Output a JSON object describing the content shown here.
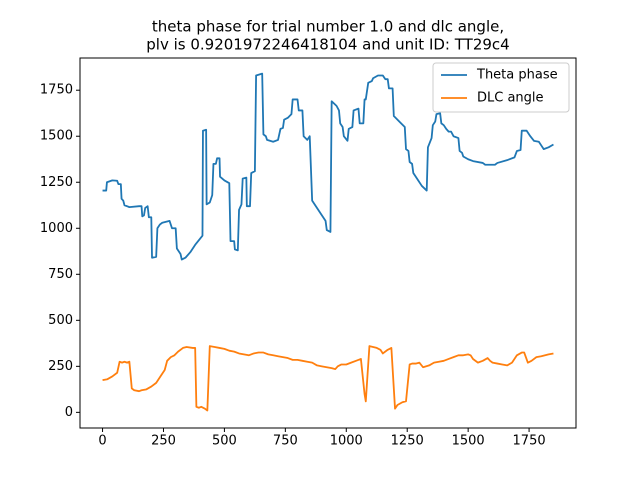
{
  "chart_data": {
    "type": "line",
    "title": [
      "theta phase for trial number 1.0 and dlc angle,",
      "plv is 0.9201972246418104 and unit ID: TT29c4"
    ],
    "xlim": [
      -92.5,
      1942.5
    ],
    "ylim": [
      -85,
      1925
    ],
    "xticks": [
      0,
      250,
      500,
      750,
      1000,
      1250,
      1500,
      1750
    ],
    "yticks": [
      0,
      250,
      500,
      750,
      1000,
      1250,
      1500,
      1750
    ],
    "legend": "upper right",
    "series": [
      {
        "name": "Theta phase",
        "color": "#1f77b4",
        "x": [
          0,
          15,
          18,
          40,
          60,
          65,
          75,
          78,
          85,
          90,
          110,
          150,
          160,
          163,
          170,
          175,
          185,
          190,
          200,
          203,
          220,
          225,
          235,
          245,
          275,
          285,
          300,
          305,
          320,
          325,
          340,
          360,
          380,
          410,
          412,
          425,
          427,
          440,
          450,
          455,
          465,
          470,
          480,
          482,
          500,
          520,
          525,
          540,
          543,
          555,
          560,
          570,
          575,
          590,
          592,
          605,
          610,
          625,
          630,
          655,
          660,
          670,
          675,
          700,
          720,
          730,
          740,
          745,
          760,
          775,
          780,
          800,
          805,
          820,
          825,
          840,
          850,
          860,
          880,
          900,
          915,
          920,
          935,
          940,
          960,
          970,
          975,
          985,
          990,
          1005,
          1010,
          1025,
          1030,
          1050,
          1055,
          1070,
          1075,
          1080,
          1090,
          1105,
          1110,
          1130,
          1150,
          1160,
          1170,
          1175,
          1190,
          1195,
          1225,
          1240,
          1245,
          1255,
          1260,
          1270,
          1275,
          1295,
          1310,
          1330,
          1335,
          1350,
          1355,
          1365,
          1370,
          1385,
          1390,
          1400,
          1410,
          1420,
          1430,
          1440,
          1460,
          1465,
          1475,
          1480,
          1500,
          1520,
          1560,
          1570,
          1610,
          1620,
          1660,
          1690,
          1700,
          1715,
          1720,
          1740,
          1755,
          1770,
          1790,
          1800,
          1810,
          1830,
          1850
        ],
        "values": [
          1205,
          1205,
          1250,
          1260,
          1258,
          1240,
          1240,
          1160,
          1150,
          1125,
          1115,
          1120,
          1120,
          1065,
          1070,
          1110,
          1120,
          1060,
          1060,
          840,
          845,
          1000,
          1020,
          1030,
          1040,
          1000,
          1000,
          890,
          860,
          830,
          840,
          870,
          910,
          960,
          1530,
          1535,
          1130,
          1140,
          1180,
          1350,
          1350,
          1380,
          1380,
          1280,
          1260,
          1245,
          930,
          930,
          885,
          880,
          1100,
          1130,
          1270,
          1275,
          1120,
          1120,
          1300,
          1310,
          1830,
          1840,
          1510,
          1500,
          1480,
          1470,
          1480,
          1540,
          1545,
          1590,
          1600,
          1620,
          1700,
          1700,
          1640,
          1640,
          1500,
          1480,
          1500,
          1150,
          1110,
          1070,
          1040,
          990,
          980,
          1690,
          1665,
          1640,
          1570,
          1550,
          1500,
          1475,
          1540,
          1550,
          1640,
          1650,
          1570,
          1570,
          1700,
          1700,
          1790,
          1800,
          1815,
          1830,
          1830,
          1810,
          1810,
          1760,
          1760,
          1610,
          1570,
          1550,
          1430,
          1420,
          1360,
          1350,
          1300,
          1260,
          1230,
          1205,
          1440,
          1490,
          1560,
          1580,
          1620,
          1625,
          1570,
          1560,
          1540,
          1525,
          1525,
          1500,
          1490,
          1420,
          1410,
          1390,
          1375,
          1365,
          1355,
          1345,
          1345,
          1355,
          1370,
          1385,
          1420,
          1425,
          1530,
          1530,
          1500,
          1475,
          1470,
          1450,
          1430,
          1440,
          1455
        ]
      },
      {
        "name": "DLC angle",
        "color": "#ff7f0e",
        "x": [
          0,
          20,
          40,
          60,
          70,
          80,
          90,
          100,
          110,
          120,
          130,
          150,
          160,
          180,
          200,
          220,
          240,
          255,
          265,
          280,
          295,
          310,
          330,
          345,
          370,
          380,
          385,
          395,
          405,
          420,
          430,
          440,
          460,
          480,
          500,
          520,
          540,
          560,
          580,
          600,
          620,
          640,
          660,
          680,
          700,
          720,
          740,
          760,
          780,
          800,
          820,
          840,
          860,
          880,
          900,
          920,
          940,
          955,
          965,
          980,
          1000,
          1020,
          1040,
          1060,
          1075,
          1080,
          1095,
          1110,
          1125,
          1140,
          1150,
          1170,
          1185,
          1200,
          1210,
          1230,
          1245,
          1260,
          1270,
          1285,
          1300,
          1315,
          1340,
          1360,
          1380,
          1400,
          1420,
          1440,
          1460,
          1480,
          1500,
          1510,
          1520,
          1540,
          1560,
          1580,
          1590,
          1600,
          1620,
          1640,
          1660,
          1680,
          1700,
          1720,
          1730,
          1745,
          1760,
          1780,
          1800,
          1830,
          1850
        ],
        "values": [
          175,
          180,
          195,
          215,
          275,
          270,
          275,
          270,
          275,
          130,
          120,
          115,
          120,
          125,
          140,
          160,
          200,
          230,
          280,
          300,
          310,
          330,
          350,
          355,
          350,
          350,
          30,
          25,
          30,
          20,
          10,
          360,
          355,
          350,
          345,
          335,
          330,
          320,
          315,
          310,
          320,
          325,
          325,
          315,
          310,
          305,
          300,
          295,
          285,
          285,
          280,
          275,
          270,
          255,
          250,
          245,
          240,
          235,
          250,
          260,
          260,
          270,
          280,
          290,
          100,
          60,
          360,
          355,
          350,
          340,
          320,
          340,
          350,
          20,
          40,
          55,
          60,
          260,
          265,
          265,
          270,
          245,
          255,
          270,
          275,
          280,
          290,
          300,
          310,
          310,
          315,
          310,
          290,
          270,
          280,
          295,
          280,
          270,
          265,
          260,
          255,
          270,
          310,
          325,
          325,
          270,
          280,
          300,
          305,
          315,
          320
        ]
      }
    ]
  }
}
